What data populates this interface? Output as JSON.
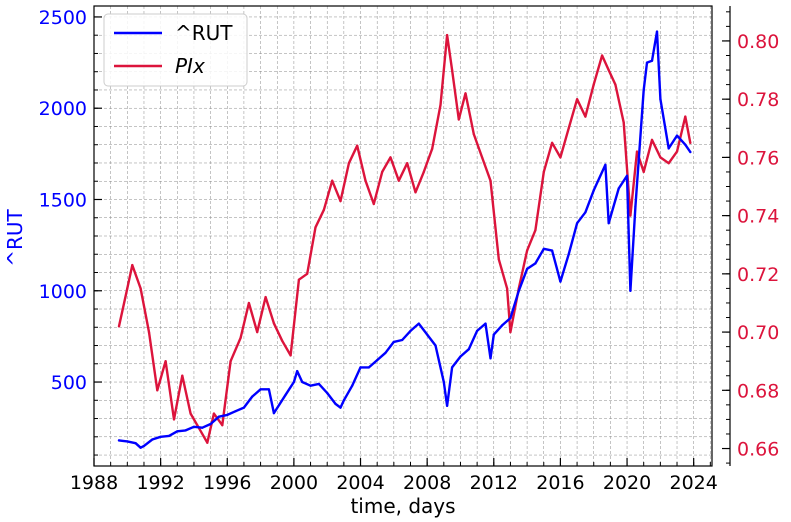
{
  "chart_data": {
    "type": "line",
    "xlabel": "time, days",
    "ylabel_left": "^RUT",
    "xlim": [
      1988,
      2025.1
    ],
    "ylim_left": [
      40,
      2560
    ],
    "ylim_right": [
      0.654,
      0.812
    ],
    "x_ticks": [
      1988,
      1992,
      1996,
      2000,
      2004,
      2008,
      2012,
      2016,
      2020,
      2024
    ],
    "y_ticks_left": [
      500,
      1000,
      1500,
      2000,
      2500
    ],
    "y_ticks_right": [
      0.66,
      0.68,
      0.7,
      0.72,
      0.74,
      0.76,
      0.78,
      0.8
    ],
    "grid": true,
    "legend_position": "top-left",
    "colors": {
      "rut": "#0000ff",
      "plx": "#dc143c"
    },
    "series": [
      {
        "name": "^RUT",
        "axis": "left",
        "x": [
          1989.5,
          1990.0,
          1990.5,
          1990.8,
          1991.0,
          1991.5,
          1992.0,
          1992.5,
          1993.0,
          1993.5,
          1994.0,
          1994.5,
          1995.0,
          1995.5,
          1996.0,
          1996.5,
          1997.0,
          1997.5,
          1998.0,
          1998.5,
          1998.8,
          1999.5,
          2000.0,
          2000.2,
          2000.5,
          2001.0,
          2001.5,
          2002.0,
          2002.5,
          2002.8,
          2003.0,
          2003.5,
          2004.0,
          2004.5,
          2005.0,
          2005.5,
          2006.0,
          2006.5,
          2007.0,
          2007.5,
          2008.0,
          2008.5,
          2009.0,
          2009.2,
          2009.5,
          2010.0,
          2010.5,
          2011.0,
          2011.5,
          2011.8,
          2012.0,
          2012.5,
          2013.0,
          2013.5,
          2014.0,
          2014.5,
          2015.0,
          2015.5,
          2016.0,
          2016.5,
          2017.0,
          2017.5,
          2018.0,
          2018.7,
          2018.9,
          2019.5,
          2020.0,
          2020.2,
          2020.5,
          2021.0,
          2021.2,
          2021.5,
          2021.8,
          2022.0,
          2022.5,
          2023.0,
          2023.5,
          2023.8
        ],
        "values": [
          180,
          175,
          165,
          140,
          150,
          185,
          200,
          205,
          230,
          235,
          255,
          250,
          270,
          310,
          320,
          340,
          360,
          420,
          460,
          460,
          330,
          430,
          500,
          560,
          500,
          480,
          490,
          440,
          380,
          360,
          400,
          480,
          580,
          580,
          620,
          660,
          720,
          730,
          780,
          820,
          760,
          700,
          500,
          370,
          580,
          640,
          680,
          780,
          820,
          630,
          760,
          810,
          850,
          1000,
          1120,
          1150,
          1230,
          1220,
          1050,
          1200,
          1370,
          1430,
          1550,
          1690,
          1370,
          1560,
          1630,
          1000,
          1460,
          2100,
          2250,
          2260,
          2420,
          2050,
          1780,
          1850,
          1800,
          1760
        ]
      },
      {
        "name": "PIx",
        "axis": "right",
        "x": [
          1989.5,
          1990.0,
          1990.3,
          1990.8,
          1991.3,
          1991.8,
          1992.3,
          1992.8,
          1993.3,
          1993.8,
          1994.2,
          1994.8,
          1995.2,
          1995.7,
          1996.2,
          1996.8,
          1997.3,
          1997.8,
          1998.3,
          1998.8,
          1999.3,
          1999.8,
          2000.3,
          2000.8,
          2001.3,
          2001.8,
          2002.3,
          2002.8,
          2003.3,
          2003.8,
          2004.3,
          2004.8,
          2005.3,
          2005.8,
          2006.3,
          2006.8,
          2007.3,
          2007.8,
          2008.3,
          2008.8,
          2009.2,
          2009.5,
          2009.9,
          2010.3,
          2010.8,
          2011.3,
          2011.8,
          2012.3,
          2012.8,
          2013.0,
          2013.5,
          2014.0,
          2014.5,
          2015.0,
          2015.5,
          2016.0,
          2016.5,
          2017.0,
          2017.5,
          2018.0,
          2018.5,
          2018.9,
          2019.3,
          2019.8,
          2020.2,
          2020.6,
          2021.0,
          2021.5,
          2022.0,
          2022.5,
          2023.0,
          2023.5,
          2023.8
        ],
        "values": [
          0.702,
          0.715,
          0.723,
          0.715,
          0.7,
          0.68,
          0.69,
          0.67,
          0.685,
          0.672,
          0.668,
          0.662,
          0.672,
          0.668,
          0.69,
          0.698,
          0.71,
          0.7,
          0.712,
          0.703,
          0.697,
          0.692,
          0.718,
          0.72,
          0.736,
          0.742,
          0.752,
          0.745,
          0.758,
          0.764,
          0.752,
          0.744,
          0.755,
          0.76,
          0.752,
          0.758,
          0.748,
          0.755,
          0.763,
          0.778,
          0.802,
          0.79,
          0.773,
          0.782,
          0.768,
          0.76,
          0.752,
          0.725,
          0.715,
          0.7,
          0.715,
          0.728,
          0.735,
          0.755,
          0.765,
          0.76,
          0.77,
          0.78,
          0.774,
          0.785,
          0.795,
          0.79,
          0.785,
          0.772,
          0.74,
          0.762,
          0.755,
          0.766,
          0.76,
          0.758,
          0.762,
          0.774,
          0.765
        ]
      }
    ]
  }
}
